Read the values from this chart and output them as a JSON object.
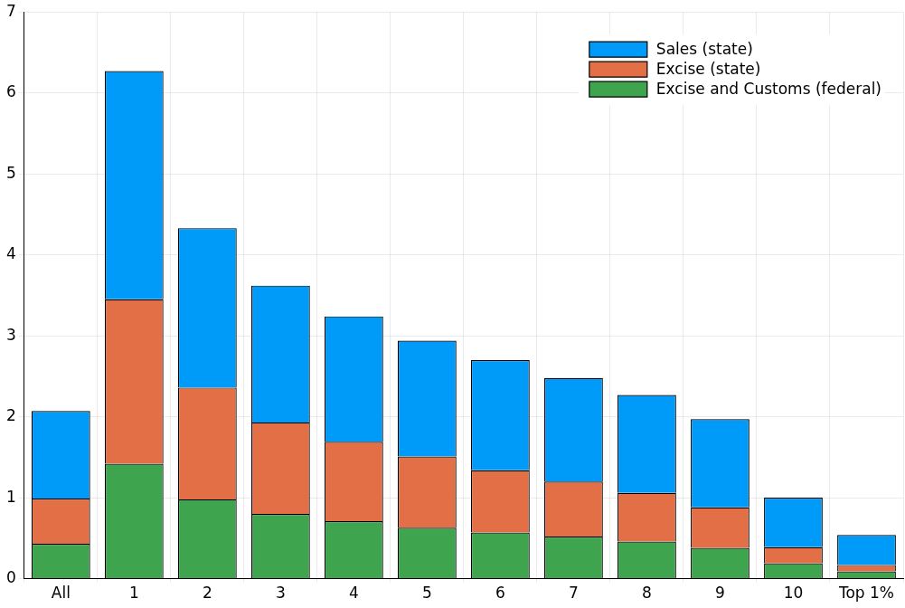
{
  "chart_data": {
    "type": "bar",
    "stacked": true,
    "categories": [
      "All",
      "1",
      "2",
      "3",
      "4",
      "5",
      "6",
      "7",
      "8",
      "9",
      "10",
      "Top 1%"
    ],
    "series": [
      {
        "name": "Excise and Customs (federal)",
        "color": "#3ea44e",
        "values": [
          0.43,
          1.42,
          0.98,
          0.8,
          0.71,
          0.63,
          0.57,
          0.52,
          0.46,
          0.38,
          0.19,
          0.09
        ]
      },
      {
        "name": "Excise (state)",
        "color": "#e26f46",
        "values": [
          0.56,
          2.03,
          1.38,
          1.13,
          0.98,
          0.88,
          0.77,
          0.68,
          0.6,
          0.5,
          0.2,
          0.08
        ]
      },
      {
        "name": "Sales (state)",
        "color": "#009af9",
        "values": [
          1.08,
          2.82,
          1.97,
          1.69,
          1.55,
          1.43,
          1.36,
          1.28,
          1.21,
          1.09,
          0.61,
          0.37
        ]
      }
    ],
    "ylim": [
      0,
      7
    ],
    "yticks": [
      0,
      1,
      2,
      3,
      4,
      5,
      6,
      7
    ],
    "grid": true,
    "legend": "top right"
  }
}
